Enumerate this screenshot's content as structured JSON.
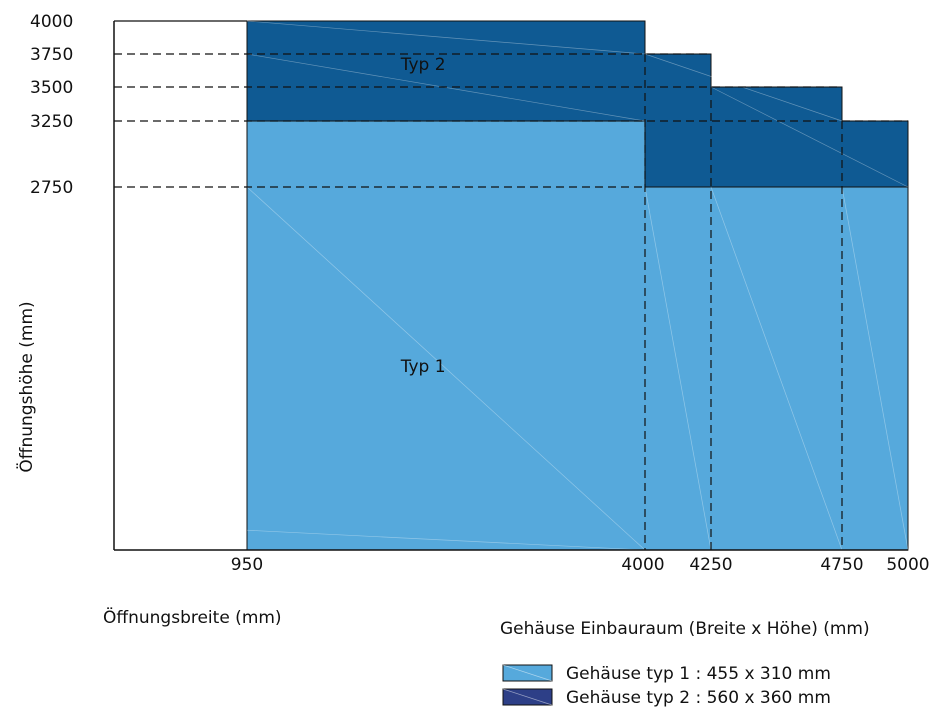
{
  "chart_data": {
    "type": "area",
    "title": "",
    "ylabel": "Öffnungshöhe (mm)",
    "xlabel": "Öffnungsbreite (mm)",
    "xlabel_secondary": "Gehäuse Einbauraum (Breite x Höhe) (mm)",
    "xlim": [
      0,
      5000
    ],
    "ylim": [
      0,
      4000
    ],
    "x_ticks": [
      950,
      4000,
      4250,
      4750,
      5000
    ],
    "y_ticks": [
      2750,
      3250,
      3500,
      3750,
      4000
    ],
    "grid": false,
    "regions": [
      {
        "name": "Typ 1",
        "label": "Typ 1",
        "color": "#56a9dc",
        "polygon": [
          [
            950,
            0
          ],
          [
            5000,
            0
          ],
          [
            5000,
            2750
          ],
          [
            4000,
            2750
          ],
          [
            4000,
            3250
          ],
          [
            950,
            3250
          ]
        ]
      },
      {
        "name": "Typ 2",
        "label": "Typ 2",
        "color": "#0f5a93",
        "polygon": [
          [
            950,
            3250
          ],
          [
            950,
            4000
          ],
          [
            4000,
            4000
          ],
          [
            4000,
            3750
          ],
          [
            4250,
            3750
          ],
          [
            4250,
            3500
          ],
          [
            4750,
            3500
          ],
          [
            4750,
            3250
          ],
          [
            5000,
            3250
          ],
          [
            5000,
            2750
          ],
          [
            4000,
            2750
          ],
          [
            4000,
            3250
          ]
        ]
      }
    ],
    "legend": {
      "position": "bottom-right",
      "items": [
        {
          "label": "Gehäuse typ 1 : 455 x 310 mm",
          "color": "#56a9dc"
        },
        {
          "label": "Gehäuse typ 2 : 560 x 360 mm",
          "color": "#2d3f87"
        }
      ]
    }
  }
}
